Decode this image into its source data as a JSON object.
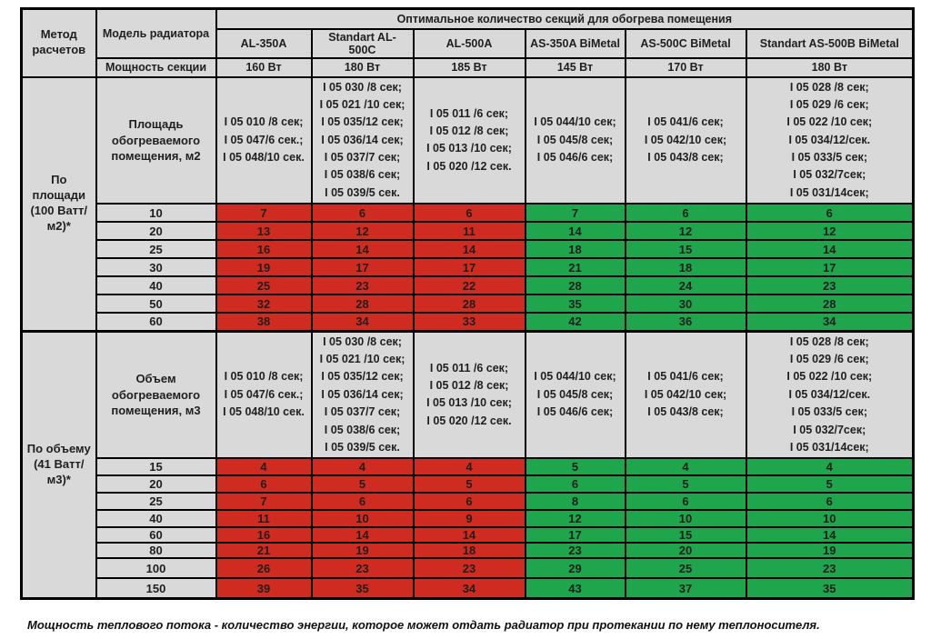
{
  "header": {
    "method_label": "Метод расчетов",
    "model_label": "Модель радиатора",
    "power_label": "Мощность секции",
    "banner": "Оптимальное количество секций для обогрева помещения",
    "models": [
      "AL-350A",
      "Standart AL-500C",
      "AL-500A",
      "AS-350A BiMetal",
      "AS-500C BiMetal",
      "Standart AS-500B BiMetal"
    ],
    "powers": [
      "160 Вт",
      "180 Вт",
      "185 Вт",
      "145 Вт",
      "170 Вт",
      "180 Вт"
    ]
  },
  "articles": [
    "I 05 010 /8 сек;\nI 05 047/6 сек.;\nI 05 048/10 сек.",
    "I 05 030 /8 сек;\nI 05 021 /10 сек;\nI 05 035/12 сек;\nI 05 036/14 сек;\nI 05 037/7 сек;\nI 05 038/6 сек;\nI 05 039/5 сек.",
    "I 05 011 /6 сек;\nI 05 012 /8 сек;\nI 05 013 /10 сек;\nI 05 020 /12 сек.",
    "I 05 044/10 сек;\nI 05 045/8 сек;\nI 05 046/6 сек;",
    "I 05 041/6 сек;\nI 05 042/10 сек;\nI 05 043/8 сек;",
    "I 05 028 /8 сек;\nI 05 029 /6 сек;\nI 05 022 /10 сек;\nI 05 034/12/сек.\nI 05 033/5 сек;\nI 05 032/7сек;\nI 05 031/14сек;"
  ],
  "sections": [
    {
      "method": "По площади (100 Ватт/м2)*",
      "dim_label": "Площадь обогреваемого помещения, м2",
      "rows": [
        {
          "key": "10",
          "values": [
            7,
            6,
            6,
            7,
            6,
            6
          ]
        },
        {
          "key": "20",
          "values": [
            13,
            12,
            11,
            14,
            12,
            12
          ]
        },
        {
          "key": "25",
          "values": [
            16,
            14,
            14,
            18,
            15,
            14
          ]
        },
        {
          "key": "30",
          "values": [
            19,
            17,
            17,
            21,
            18,
            17
          ]
        },
        {
          "key": "40",
          "values": [
            25,
            23,
            22,
            28,
            24,
            23
          ]
        },
        {
          "key": "50",
          "values": [
            32,
            28,
            28,
            35,
            30,
            28
          ]
        },
        {
          "key": "60",
          "values": [
            38,
            34,
            33,
            42,
            36,
            34
          ]
        }
      ]
    },
    {
      "method": "По объему (41 Ватт/м3)*",
      "dim_label": "Объем обогреваемого помещения, м3",
      "rows": [
        {
          "key": "15",
          "values": [
            4,
            4,
            4,
            5,
            4,
            4
          ]
        },
        {
          "key": "20",
          "values": [
            6,
            5,
            5,
            6,
            5,
            5
          ]
        },
        {
          "key": "25",
          "values": [
            7,
            6,
            6,
            8,
            6,
            6
          ]
        },
        {
          "key": "40",
          "values": [
            11,
            10,
            9,
            12,
            10,
            10
          ]
        },
        {
          "key": "60",
          "values": [
            16,
            14,
            14,
            17,
            15,
            14
          ],
          "compact": true
        },
        {
          "key": "80",
          "values": [
            21,
            19,
            18,
            23,
            20,
            19
          ],
          "compact": true
        },
        {
          "key": "100",
          "values": [
            26,
            23,
            23,
            29,
            25,
            23
          ]
        },
        {
          "key": "150",
          "values": [
            39,
            35,
            34,
            43,
            37,
            35
          ]
        }
      ]
    }
  ],
  "colors": {
    "red": "#d02b21",
    "green": "#1fa54c",
    "cell_bg": "#d9d9d9"
  },
  "footnote": "Мощность теплового потока - количество энергии, которое может отдать радиатор при протекании по нему теплоносителя."
}
